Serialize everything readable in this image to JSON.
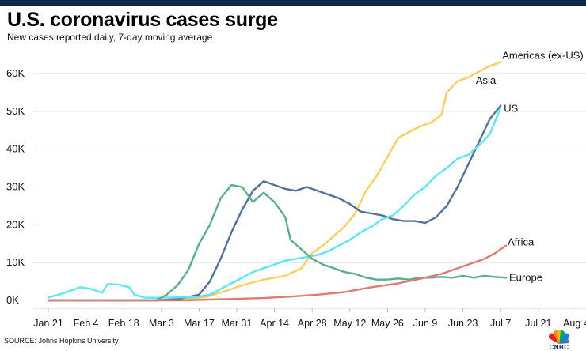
{
  "chart_data": {
    "type": "line",
    "title": "U.S. coronavirus cases surge",
    "subtitle": "New cases reported daily, 7-day moving average",
    "source": "SOURCE: Johns Hopkins University",
    "xlabel": "",
    "ylabel": "",
    "x_unit": "day index (0 = Jan 21)",
    "xlim": [
      -4,
      199
    ],
    "ylim": [
      0,
      65000
    ],
    "grid": true,
    "y_ticks": [
      {
        "value": 0,
        "label": "0K"
      },
      {
        "value": 10000,
        "label": "10K"
      },
      {
        "value": 20000,
        "label": "20K"
      },
      {
        "value": 30000,
        "label": "30K"
      },
      {
        "value": 40000,
        "label": "40K"
      },
      {
        "value": 50000,
        "label": "50K"
      },
      {
        "value": 60000,
        "label": "60K"
      }
    ],
    "x_ticks": [
      {
        "value": 0,
        "label": "Jan 21"
      },
      {
        "value": 14,
        "label": "Feb 4"
      },
      {
        "value": 28,
        "label": "Feb 18"
      },
      {
        "value": 42,
        "label": "Mar 3"
      },
      {
        "value": 56,
        "label": "Mar 17"
      },
      {
        "value": 70,
        "label": "Mar 31"
      },
      {
        "value": 84,
        "label": "Apr 14"
      },
      {
        "value": 98,
        "label": "Apr 28"
      },
      {
        "value": 112,
        "label": "May 12"
      },
      {
        "value": 126,
        "label": "May 26"
      },
      {
        "value": 140,
        "label": "Jun 9"
      },
      {
        "value": 154,
        "label": "Jun 23"
      },
      {
        "value": 168,
        "label": "Jul 7"
      },
      {
        "value": 182,
        "label": "Jul 21"
      },
      {
        "value": 196,
        "label": "Aug 4"
      }
    ],
    "series": [
      {
        "name": "Americas (ex-US)",
        "label": "Americas (ex-US)",
        "color": "#f5d061",
        "points": [
          [
            0,
            0
          ],
          [
            40,
            0
          ],
          [
            50,
            200
          ],
          [
            58,
            800
          ],
          [
            66,
            2500
          ],
          [
            72,
            4000
          ],
          [
            80,
            5500
          ],
          [
            88,
            6500
          ],
          [
            94,
            8500
          ],
          [
            98,
            12500
          ],
          [
            102,
            14500
          ],
          [
            106,
            17000
          ],
          [
            110,
            19500
          ],
          [
            114,
            23000
          ],
          [
            118,
            29000
          ],
          [
            122,
            33000
          ],
          [
            126,
            38000
          ],
          [
            130,
            43000
          ],
          [
            134,
            44500
          ],
          [
            138,
            46000
          ],
          [
            142,
            47000
          ],
          [
            146,
            49000
          ],
          [
            148,
            55000
          ],
          [
            152,
            58000
          ],
          [
            156,
            59000
          ],
          [
            160,
            60500
          ],
          [
            164,
            62000
          ],
          [
            168,
            63000
          ]
        ]
      },
      {
        "name": "US",
        "label": "US",
        "color": "#52729a",
        "points": [
          [
            0,
            0
          ],
          [
            40,
            0
          ],
          [
            48,
            300
          ],
          [
            56,
            1500
          ],
          [
            60,
            5000
          ],
          [
            64,
            11000
          ],
          [
            68,
            18000
          ],
          [
            72,
            24000
          ],
          [
            76,
            29000
          ],
          [
            80,
            31500
          ],
          [
            84,
            30500
          ],
          [
            88,
            29500
          ],
          [
            92,
            29000
          ],
          [
            96,
            30000
          ],
          [
            100,
            29000
          ],
          [
            104,
            28000
          ],
          [
            108,
            27000
          ],
          [
            112,
            25500
          ],
          [
            116,
            23500
          ],
          [
            120,
            23000
          ],
          [
            124,
            22500
          ],
          [
            128,
            21500
          ],
          [
            132,
            21000
          ],
          [
            136,
            21000
          ],
          [
            140,
            20500
          ],
          [
            144,
            22000
          ],
          [
            148,
            25000
          ],
          [
            152,
            30000
          ],
          [
            156,
            36000
          ],
          [
            160,
            42000
          ],
          [
            164,
            48000
          ],
          [
            168,
            51500
          ]
        ]
      },
      {
        "name": "Asia",
        "label": "Asia",
        "color": "#5ee6f0",
        "points": [
          [
            0,
            800
          ],
          [
            4,
            1500
          ],
          [
            8,
            2500
          ],
          [
            12,
            3500
          ],
          [
            16,
            3000
          ],
          [
            20,
            2000
          ],
          [
            22,
            4300
          ],
          [
            26,
            4200
          ],
          [
            30,
            3500
          ],
          [
            32,
            1500
          ],
          [
            36,
            700
          ],
          [
            42,
            700
          ],
          [
            48,
            800
          ],
          [
            54,
            800
          ],
          [
            60,
            1500
          ],
          [
            64,
            3000
          ],
          [
            68,
            4500
          ],
          [
            72,
            6000
          ],
          [
            76,
            7500
          ],
          [
            80,
            8500
          ],
          [
            84,
            9500
          ],
          [
            88,
            10500
          ],
          [
            92,
            11000
          ],
          [
            96,
            11500
          ],
          [
            100,
            12000
          ],
          [
            104,
            13000
          ],
          [
            108,
            14500
          ],
          [
            112,
            16000
          ],
          [
            116,
            18000
          ],
          [
            120,
            19500
          ],
          [
            124,
            21500
          ],
          [
            128,
            22500
          ],
          [
            132,
            25000
          ],
          [
            136,
            28000
          ],
          [
            140,
            30000
          ],
          [
            144,
            33000
          ],
          [
            148,
            35000
          ],
          [
            152,
            37500
          ],
          [
            156,
            38500
          ],
          [
            160,
            41000
          ],
          [
            164,
            44000
          ],
          [
            168,
            51000
          ]
        ]
      },
      {
        "name": "Europe",
        "label": "Europe",
        "color": "#5aae8c",
        "points": [
          [
            0,
            0
          ],
          [
            40,
            0
          ],
          [
            44,
            1500
          ],
          [
            48,
            4000
          ],
          [
            52,
            8000
          ],
          [
            56,
            15000
          ],
          [
            60,
            20000
          ],
          [
            64,
            27000
          ],
          [
            68,
            30500
          ],
          [
            72,
            30000
          ],
          [
            76,
            26000
          ],
          [
            80,
            28500
          ],
          [
            84,
            26000
          ],
          [
            88,
            22000
          ],
          [
            90,
            16000
          ],
          [
            94,
            13500
          ],
          [
            98,
            11000
          ],
          [
            102,
            9500
          ],
          [
            106,
            8500
          ],
          [
            110,
            7500
          ],
          [
            114,
            7000
          ],
          [
            118,
            6000
          ],
          [
            122,
            5500
          ],
          [
            126,
            5500
          ],
          [
            130,
            5800
          ],
          [
            134,
            5500
          ],
          [
            138,
            6000
          ],
          [
            142,
            6000
          ],
          [
            146,
            6200
          ],
          [
            150,
            6000
          ],
          [
            154,
            6500
          ],
          [
            158,
            6000
          ],
          [
            162,
            6500
          ],
          [
            166,
            6200
          ],
          [
            170,
            6000
          ]
        ]
      },
      {
        "name": "Africa",
        "label": "Africa",
        "color": "#e07a72",
        "points": [
          [
            0,
            0
          ],
          [
            50,
            0
          ],
          [
            60,
            200
          ],
          [
            70,
            400
          ],
          [
            80,
            600
          ],
          [
            90,
            1000
          ],
          [
            100,
            1500
          ],
          [
            110,
            2200
          ],
          [
            120,
            3500
          ],
          [
            130,
            4500
          ],
          [
            140,
            6000
          ],
          [
            146,
            7000
          ],
          [
            150,
            8000
          ],
          [
            154,
            9000
          ],
          [
            158,
            10000
          ],
          [
            162,
            11000
          ],
          [
            166,
            12500
          ],
          [
            170,
            14500
          ]
        ]
      }
    ]
  }
}
